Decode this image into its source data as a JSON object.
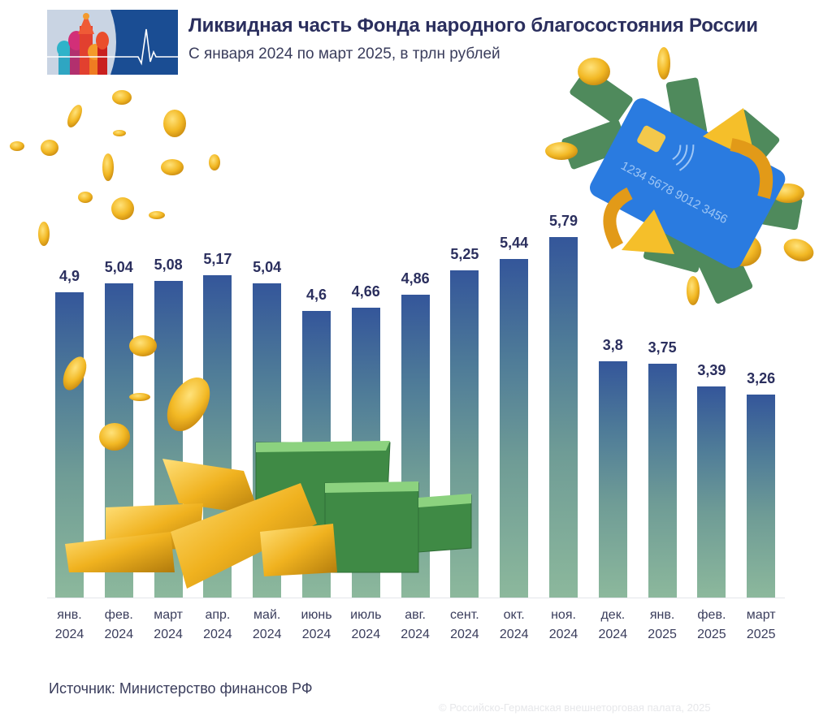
{
  "header": {
    "title": "Ликвидная часть Фонда народного благосостояния России",
    "subtitle": "С января 2024 по март 2025, в трлн рублей",
    "logo_icon": "kremlin-cathedral-heartbeat-logo"
  },
  "footer": {
    "source": "Источник: Министерство финансов РФ",
    "copyright": "© Российско-Германская внешнеторговая палата, 2025"
  },
  "colors": {
    "title": "#2b2f5e",
    "bar_top": "#34569a",
    "bar_bottom": "#8cb89c",
    "logo_blue": "#1a4d93"
  },
  "decorations": [
    "falling-gold-coins",
    "credit-card-with-money",
    "gold-bars",
    "banknote-stacks"
  ],
  "chart_data": {
    "type": "bar",
    "title": "Ликвидная часть Фонда народного благосостояния России",
    "subtitle": "С января 2024 по март 2025, в трлн рублей",
    "xlabel": "",
    "ylabel": "трлн рублей",
    "ylim": [
      0,
      6
    ],
    "grid": false,
    "legend": null,
    "categories": [
      {
        "month": "янв.",
        "year": "2024"
      },
      {
        "month": "фев.",
        "year": "2024"
      },
      {
        "month": "март",
        "year": "2024"
      },
      {
        "month": "апр.",
        "year": "2024"
      },
      {
        "month": "май.",
        "year": "2024"
      },
      {
        "month": "июнь",
        "year": "2024"
      },
      {
        "month": "июль",
        "year": "2024"
      },
      {
        "month": "авг.",
        "year": "2024"
      },
      {
        "month": "сент.",
        "year": "2024"
      },
      {
        "month": "окт.",
        "year": "2024"
      },
      {
        "month": "ноя.",
        "year": "2024"
      },
      {
        "month": "дек.",
        "year": "2024"
      },
      {
        "month": "янв.",
        "year": "2025"
      },
      {
        "month": "фев.",
        "year": "2025"
      },
      {
        "month": "март",
        "year": "2025"
      }
    ],
    "values": [
      4.9,
      5.04,
      5.08,
      5.17,
      5.04,
      4.6,
      4.66,
      4.86,
      5.25,
      5.44,
      5.79,
      3.8,
      3.75,
      3.39,
      3.26
    ],
    "value_labels": [
      "4,9",
      "5,04",
      "5,08",
      "5,17",
      "5,04",
      "4,6",
      "4,66",
      "4,86",
      "5,25",
      "5,44",
      "5,79",
      "3,8",
      "3,75",
      "3,39",
      "3,26"
    ]
  }
}
